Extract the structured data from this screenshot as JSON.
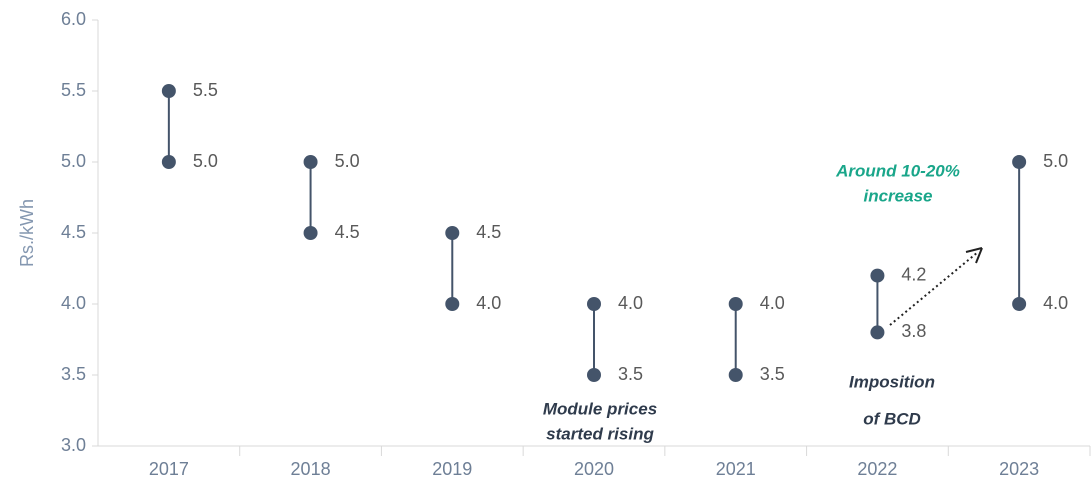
{
  "chart_data": {
    "type": "range",
    "y_label": "Rs./kWh",
    "categories": [
      "2017",
      "2018",
      "2019",
      "2020",
      "2021",
      "2022",
      "2023"
    ],
    "series": [
      {
        "values": [
          5.0,
          4.5,
          4.0,
          3.5,
          3.5,
          3.8,
          4.0
        ],
        "value_labels": [
          "5.0",
          "4.5",
          "4.0",
          "3.5",
          "3.5",
          "3.8",
          "4.0"
        ]
      },
      {
        "values": [
          5.5,
          5.0,
          4.5,
          4.0,
          4.0,
          4.2,
          5.0
        ],
        "value_labels": [
          "5.5",
          "5.0",
          "4.5",
          "4.0",
          "4.0",
          "4.2",
          "5.0"
        ]
      }
    ],
    "color": "#44546a",
    "ylim": [
      3.0,
      6.0
    ],
    "yticks": [
      {
        "value": 3,
        "label": "3.0"
      },
      {
        "value": 3.5,
        "label": "3.5"
      },
      {
        "value": 4,
        "label": "4.0"
      },
      {
        "value": 4.5,
        "label": "4.5"
      },
      {
        "value": 5,
        "label": "5.0"
      },
      {
        "value": 5.5,
        "label": "5.5"
      },
      {
        "value": 6,
        "label": "6.0"
      }
    ],
    "annotations": [
      {
        "lines": [
          "Module prices",
          "started rising"
        ],
        "color": "#2f3b4c"
      },
      {
        "lines": [
          "Imposition",
          "of BCD"
        ],
        "color": "#2f3b4c"
      },
      {
        "lines": [
          "Around 10-20%",
          "increase"
        ],
        "color": "#1aa68a"
      }
    ]
  }
}
